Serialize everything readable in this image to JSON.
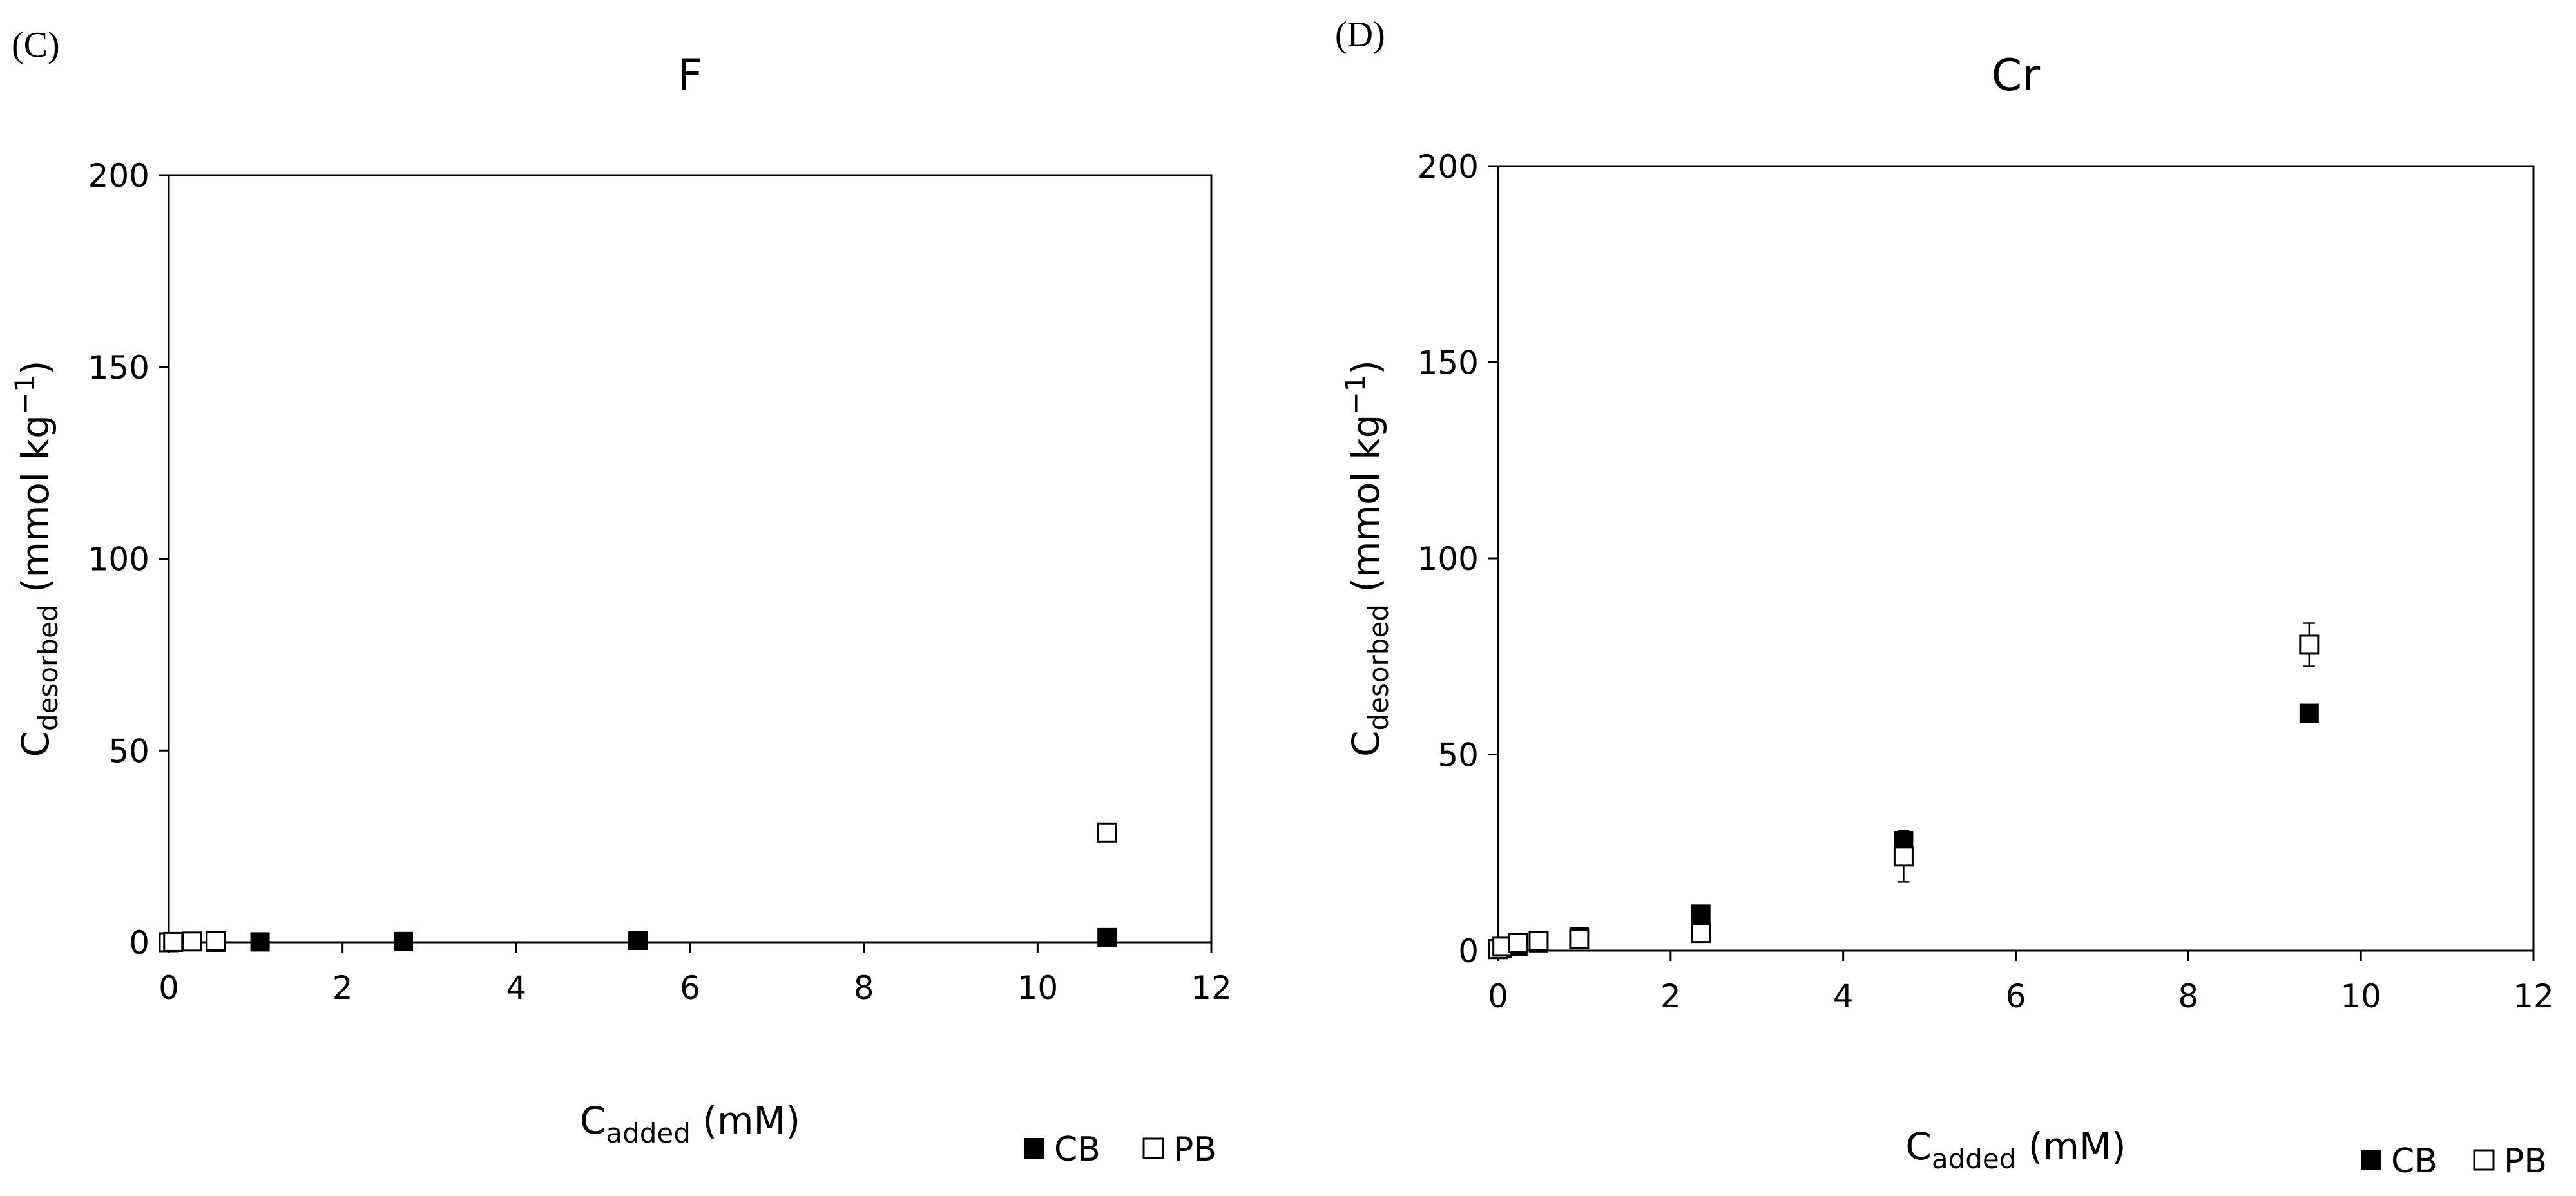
{
  "chart_data": [
    {
      "panel": "(C)",
      "type": "scatter",
      "title": "F",
      "xlabel": {
        "main": "C",
        "sub": "added",
        "unit": " (mM)"
      },
      "ylabel": {
        "main": "C",
        "sub": "desorbed",
        "unit": " (mmol kg",
        "sup": "−1",
        "close": ")"
      },
      "xlim": [
        0,
        12
      ],
      "ylim": [
        0,
        200
      ],
      "xticks": [
        "0",
        "2",
        "4",
        "6",
        "8",
        "10",
        "12"
      ],
      "yticks": [
        "0",
        "50",
        "100",
        "150",
        "200"
      ],
      "grid": false,
      "legend_position": "bottom-right",
      "series": [
        {
          "name": "CB",
          "marker": "filled-square",
          "color": "#000000",
          "points": [
            {
              "x": 0.0,
              "y": 0.0
            },
            {
              "x": 0.05,
              "y": 0.0
            },
            {
              "x": 0.54,
              "y": 0.0
            },
            {
              "x": 1.05,
              "y": 0.1
            },
            {
              "x": 2.7,
              "y": 0.2
            },
            {
              "x": 5.4,
              "y": 0.5
            },
            {
              "x": 10.8,
              "y": 1.2
            }
          ]
        },
        {
          "name": "PB",
          "marker": "open-square",
          "color": "#000000",
          "points": [
            {
              "x": 0.0,
              "y": 0.0
            },
            {
              "x": 0.05,
              "y": 0.1
            },
            {
              "x": 0.27,
              "y": 0.2
            },
            {
              "x": 0.54,
              "y": 0.3
            },
            {
              "x": 10.8,
              "y": 28.5
            }
          ]
        }
      ]
    },
    {
      "panel": "(D)",
      "type": "scatter",
      "title": "Cr",
      "xlabel": {
        "main": "C",
        "sub": "added",
        "unit": " (mM)"
      },
      "ylabel": {
        "main": "C",
        "sub": "desorbed",
        "unit": " (mmol kg",
        "sup": "−1",
        "close": ")"
      },
      "xlim": [
        0,
        12
      ],
      "ylim": [
        0,
        200
      ],
      "xticks": [
        "0",
        "2",
        "4",
        "6",
        "8",
        "10",
        "12"
      ],
      "yticks": [
        "0",
        "50",
        "100",
        "150",
        "200"
      ],
      "grid": false,
      "legend_position": "bottom-right",
      "series": [
        {
          "name": "CB",
          "marker": "filled-square",
          "color": "#000000",
          "points": [
            {
              "x": 0.0,
              "y": 0.3
            },
            {
              "x": 0.05,
              "y": 0.5
            },
            {
              "x": 0.23,
              "y": 1.0
            },
            {
              "x": 0.47,
              "y": 2.0
            },
            {
              "x": 0.94,
              "y": 3.5
            },
            {
              "x": 2.35,
              "y": 9.3
            },
            {
              "x": 4.7,
              "y": 28.0
            },
            {
              "x": 9.4,
              "y": 60.5
            }
          ]
        },
        {
          "name": "PB",
          "marker": "open-square",
          "color": "#000000",
          "points": [
            {
              "x": 0.0,
              "y": 0.4
            },
            {
              "x": 0.05,
              "y": 1.0
            },
            {
              "x": 0.23,
              "y": 2.0
            },
            {
              "x": 0.47,
              "y": 2.4
            },
            {
              "x": 0.94,
              "y": 3.0
            },
            {
              "x": 2.35,
              "y": 4.5
            },
            {
              "x": 4.7,
              "y": 24.0,
              "err": 6.5
            },
            {
              "x": 9.4,
              "y": 78.0,
              "err": 5.5
            }
          ]
        }
      ]
    }
  ]
}
